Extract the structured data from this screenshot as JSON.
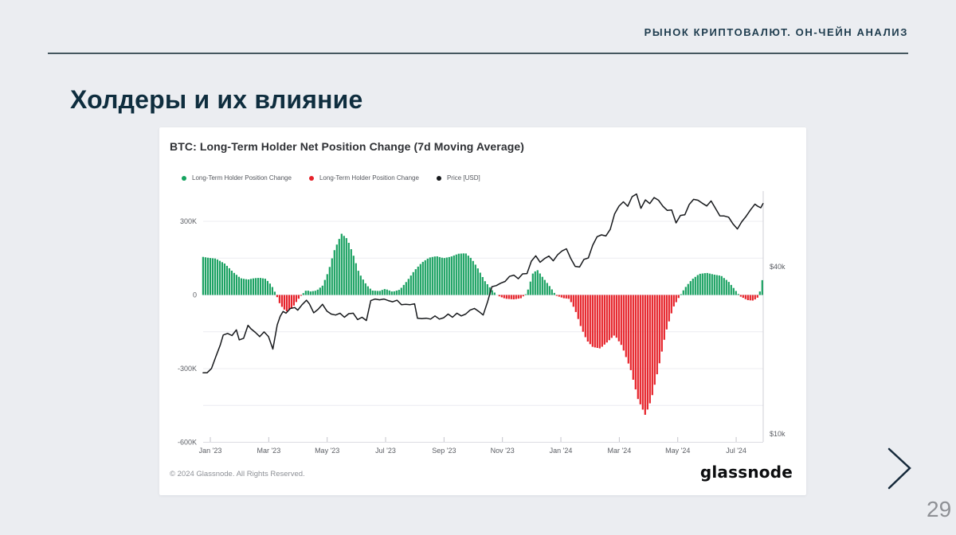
{
  "slide": {
    "header": "РЫНОК КРИПТОВАЛЮТ. ОН-ЧЕЙН АНАЛИЗ",
    "title": "Холдеры и их влияние",
    "page_number": "29"
  },
  "chart": {
    "title": "BTC: Long-Term Holder Net Position Change (7d Moving Average)",
    "legend": [
      {
        "label": "Long-Term Holder Position Change",
        "color": "#15a35f"
      },
      {
        "label": "Long-Term Holder Position Change",
        "color": "#e6222a"
      },
      {
        "label": "Price [USD]",
        "color": "#17191c"
      }
    ],
    "footer": "© 2024 Glassnode. All Rights Reserved.",
    "brand": "glassnode"
  },
  "chart_data": {
    "type": "composite",
    "title": "BTC: Long-Term Holder Net Position Change (7d Moving Average)",
    "x_axis": {
      "unit": "months since Jan 2023",
      "range": [
        -0.14,
        19.03
      ],
      "ticks": [
        {
          "m": 0,
          "label": "Jan '23"
        },
        {
          "m": 2,
          "label": "Mar '23"
        },
        {
          "m": 4,
          "label": "May '23"
        },
        {
          "m": 6,
          "label": "Jul '23"
        },
        {
          "m": 8,
          "label": "Sep '23"
        },
        {
          "m": 10,
          "label": "Nov '23"
        },
        {
          "m": 12,
          "label": "Jan '24"
        },
        {
          "m": 14,
          "label": "Mar '24"
        },
        {
          "m": 16,
          "label": "May '24"
        },
        {
          "m": 18,
          "label": "Jul '24"
        }
      ]
    },
    "y_left": {
      "unit": "BTC (thousands)",
      "range": [
        -620,
        430
      ],
      "gridlines": [
        300,
        150,
        0,
        -150,
        -300,
        -450,
        -600
      ],
      "tick_labels": [
        {
          "v": 300,
          "label": "300K"
        },
        {
          "v": 0,
          "label": "0"
        },
        {
          "v": -300,
          "label": "-300K"
        },
        {
          "v": -600,
          "label": "-600K"
        }
      ]
    },
    "y_right": {
      "scale": "log",
      "unit": "USD (thousands)",
      "tick_labels": [
        {
          "v": 40,
          "label": "$40k"
        },
        {
          "v": 10,
          "label": "$10k"
        }
      ]
    },
    "series": [
      {
        "name": "Long-Term Holder Position Change",
        "type": "bar-area",
        "axis": "left",
        "color_positive": "#1ca263",
        "color_negative": "#e6222a",
        "unit": "K BTC",
        "points": [
          [
            -0.14,
            155
          ],
          [
            0,
            152
          ],
          [
            0.3,
            148
          ],
          [
            0.6,
            128
          ],
          [
            0.9,
            92
          ],
          [
            1.15,
            68
          ],
          [
            1.4,
            63
          ],
          [
            1.6,
            68
          ],
          [
            1.8,
            70
          ],
          [
            2.0,
            66
          ],
          [
            2.2,
            40
          ],
          [
            2.35,
            5
          ],
          [
            2.5,
            -40
          ],
          [
            2.7,
            -68
          ],
          [
            2.9,
            -55
          ],
          [
            3.1,
            -20
          ],
          [
            3.25,
            2
          ],
          [
            3.4,
            20
          ],
          [
            3.55,
            14
          ],
          [
            3.75,
            18
          ],
          [
            3.95,
            38
          ],
          [
            4.15,
            95
          ],
          [
            4.35,
            180
          ],
          [
            4.6,
            250
          ],
          [
            4.8,
            228
          ],
          [
            5.0,
            165
          ],
          [
            5.2,
            90
          ],
          [
            5.45,
            42
          ],
          [
            5.65,
            18
          ],
          [
            5.9,
            16
          ],
          [
            6.1,
            25
          ],
          [
            6.35,
            13
          ],
          [
            6.6,
            22
          ],
          [
            6.85,
            58
          ],
          [
            7.1,
            100
          ],
          [
            7.35,
            132
          ],
          [
            7.6,
            152
          ],
          [
            7.85,
            158
          ],
          [
            8.1,
            150
          ],
          [
            8.35,
            156
          ],
          [
            8.6,
            168
          ],
          [
            8.85,
            170
          ],
          [
            9.05,
            148
          ],
          [
            9.25,
            112
          ],
          [
            9.5,
            58
          ],
          [
            9.75,
            20
          ],
          [
            9.95,
            -3
          ],
          [
            10.2,
            -15
          ],
          [
            10.5,
            -18
          ],
          [
            10.75,
            -13
          ],
          [
            10.95,
            8
          ],
          [
            11.15,
            88
          ],
          [
            11.3,
            103
          ],
          [
            11.5,
            70
          ],
          [
            11.75,
            32
          ],
          [
            11.95,
            -3
          ],
          [
            12.2,
            -13
          ],
          [
            12.4,
            -16
          ],
          [
            12.6,
            -62
          ],
          [
            12.8,
            -132
          ],
          [
            13.0,
            -186
          ],
          [
            13.2,
            -212
          ],
          [
            13.45,
            -218
          ],
          [
            13.7,
            -192
          ],
          [
            13.95,
            -163
          ],
          [
            14.2,
            -208
          ],
          [
            14.5,
            -305
          ],
          [
            14.75,
            -425
          ],
          [
            15.0,
            -490
          ],
          [
            15.2,
            -428
          ],
          [
            15.45,
            -298
          ],
          [
            15.7,
            -152
          ],
          [
            15.95,
            -52
          ],
          [
            16.15,
            -10
          ],
          [
            16.35,
            28
          ],
          [
            16.6,
            64
          ],
          [
            16.85,
            86
          ],
          [
            17.1,
            90
          ],
          [
            17.35,
            83
          ],
          [
            17.6,
            78
          ],
          [
            17.85,
            54
          ],
          [
            18.05,
            24
          ],
          [
            18.25,
            -6
          ],
          [
            18.5,
            -21
          ],
          [
            18.7,
            -23
          ],
          [
            18.85,
            -10
          ],
          [
            18.95,
            25
          ],
          [
            19.03,
            80
          ]
        ]
      },
      {
        "name": "Price [USD]",
        "type": "line",
        "axis": "right",
        "color": "#17191c",
        "unit": "k USD",
        "points": [
          [
            -0.14,
            16.6
          ],
          [
            0,
            16.6
          ],
          [
            0.15,
            17.2
          ],
          [
            0.3,
            19.0
          ],
          [
            0.45,
            20.9
          ],
          [
            0.55,
            22.7
          ],
          [
            0.7,
            23.0
          ],
          [
            0.85,
            22.6
          ],
          [
            1.0,
            23.7
          ],
          [
            1.1,
            21.8
          ],
          [
            1.25,
            22.1
          ],
          [
            1.4,
            24.6
          ],
          [
            1.5,
            23.9
          ],
          [
            1.65,
            23.2
          ],
          [
            1.8,
            22.4
          ],
          [
            1.95,
            23.3
          ],
          [
            2.1,
            22.4
          ],
          [
            2.25,
            20.2
          ],
          [
            2.4,
            24.7
          ],
          [
            2.5,
            26.5
          ],
          [
            2.6,
            27.6
          ],
          [
            2.7,
            27.2
          ],
          [
            2.85,
            28.3
          ],
          [
            3.0,
            28.5
          ],
          [
            3.1,
            27.9
          ],
          [
            3.25,
            29.2
          ],
          [
            3.4,
            30.3
          ],
          [
            3.5,
            29.4
          ],
          [
            3.65,
            27.3
          ],
          [
            3.8,
            28.1
          ],
          [
            3.95,
            29.3
          ],
          [
            4.1,
            27.7
          ],
          [
            4.25,
            27.0
          ],
          [
            4.4,
            26.8
          ],
          [
            4.55,
            27.2
          ],
          [
            4.7,
            26.3
          ],
          [
            4.85,
            27.1
          ],
          [
            5.0,
            27.2
          ],
          [
            5.15,
            25.8
          ],
          [
            5.3,
            26.3
          ],
          [
            5.45,
            25.6
          ],
          [
            5.6,
            30.2
          ],
          [
            5.75,
            30.6
          ],
          [
            5.9,
            30.4
          ],
          [
            6.05,
            30.6
          ],
          [
            6.2,
            30.2
          ],
          [
            6.35,
            29.9
          ],
          [
            6.5,
            30.3
          ],
          [
            6.65,
            29.2
          ],
          [
            6.8,
            29.3
          ],
          [
            6.95,
            29.2
          ],
          [
            7.1,
            29.4
          ],
          [
            7.2,
            26.1
          ],
          [
            7.35,
            26.0
          ],
          [
            7.5,
            26.1
          ],
          [
            7.65,
            25.9
          ],
          [
            7.8,
            26.6
          ],
          [
            7.95,
            25.9
          ],
          [
            8.1,
            26.2
          ],
          [
            8.25,
            27.0
          ],
          [
            8.4,
            26.3
          ],
          [
            8.55,
            27.2
          ],
          [
            8.7,
            26.6
          ],
          [
            8.85,
            27.0
          ],
          [
            9.0,
            27.9
          ],
          [
            9.15,
            28.3
          ],
          [
            9.3,
            27.6
          ],
          [
            9.45,
            26.8
          ],
          [
            9.6,
            29.9
          ],
          [
            9.75,
            33.9
          ],
          [
            9.9,
            34.2
          ],
          [
            10.05,
            34.9
          ],
          [
            10.2,
            35.4
          ],
          [
            10.35,
            36.9
          ],
          [
            10.5,
            37.3
          ],
          [
            10.65,
            36.2
          ],
          [
            10.8,
            37.7
          ],
          [
            10.95,
            37.8
          ],
          [
            11.1,
            41.9
          ],
          [
            11.25,
            43.8
          ],
          [
            11.4,
            41.5
          ],
          [
            11.55,
            42.8
          ],
          [
            11.7,
            43.7
          ],
          [
            11.85,
            42.0
          ],
          [
            12.0,
            44.2
          ],
          [
            12.15,
            45.6
          ],
          [
            12.3,
            46.4
          ],
          [
            12.45,
            42.8
          ],
          [
            12.6,
            40.1
          ],
          [
            12.75,
            39.9
          ],
          [
            12.9,
            42.5
          ],
          [
            13.05,
            43.0
          ],
          [
            13.2,
            47.8
          ],
          [
            13.35,
            51.3
          ],
          [
            13.5,
            52.1
          ],
          [
            13.65,
            51.6
          ],
          [
            13.8,
            54.5
          ],
          [
            13.95,
            62.0
          ],
          [
            14.1,
            66.1
          ],
          [
            14.25,
            68.5
          ],
          [
            14.4,
            66.0
          ],
          [
            14.55,
            71.5
          ],
          [
            14.7,
            73.1
          ],
          [
            14.85,
            64.9
          ],
          [
            15.0,
            69.6
          ],
          [
            15.15,
            67.5
          ],
          [
            15.3,
            71.0
          ],
          [
            15.45,
            69.4
          ],
          [
            15.6,
            66.0
          ],
          [
            15.75,
            63.8
          ],
          [
            15.9,
            64.0
          ],
          [
            16.05,
            57.5
          ],
          [
            16.2,
            61.2
          ],
          [
            16.35,
            61.5
          ],
          [
            16.5,
            67.0
          ],
          [
            16.65,
            69.9
          ],
          [
            16.8,
            69.4
          ],
          [
            16.95,
            67.7
          ],
          [
            17.1,
            66.2
          ],
          [
            17.25,
            69.0
          ],
          [
            17.4,
            64.9
          ],
          [
            17.55,
            61.0
          ],
          [
            17.7,
            60.9
          ],
          [
            17.85,
            60.3
          ],
          [
            18.0,
            57.0
          ],
          [
            18.15,
            54.7
          ],
          [
            18.3,
            58.1
          ],
          [
            18.45,
            60.8
          ],
          [
            18.6,
            64.1
          ],
          [
            18.75,
            67.2
          ],
          [
            18.85,
            66.0
          ],
          [
            18.95,
            65.2
          ],
          [
            19.03,
            67.5
          ]
        ]
      }
    ],
    "legend_position": "top",
    "grid": true
  }
}
